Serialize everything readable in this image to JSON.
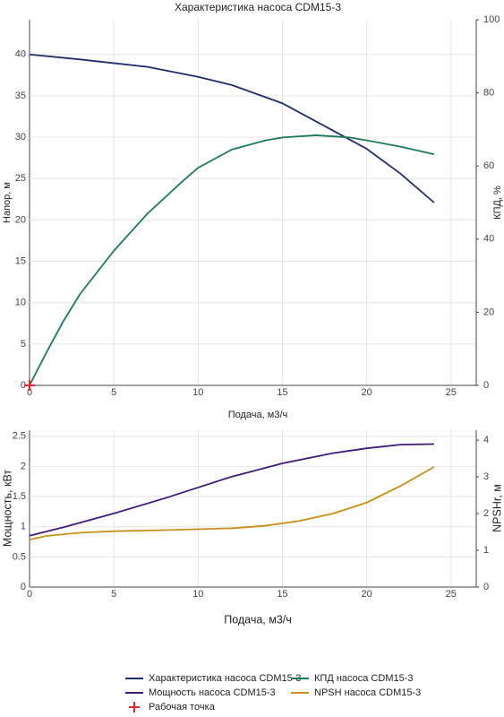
{
  "chart_data": [
    {
      "type": "line",
      "title": "Характеристика насоса CDM15-3",
      "x_label": "Подача, м3/ч",
      "y_label": "Напор, м",
      "y2_label": "КПД, %",
      "xlim": [
        0,
        26.5
      ],
      "xticks": [
        0,
        5,
        10,
        15,
        20,
        25
      ],
      "ylim": [
        0,
        44.2
      ],
      "yticks": [
        0,
        5,
        10,
        15,
        20,
        25,
        30,
        35,
        40
      ],
      "y2lim": [
        0,
        100
      ],
      "y2ticks": [
        0,
        20,
        40,
        60,
        80,
        100
      ],
      "grid": true,
      "series": [
        {
          "name": "Характеристика насоса CDM15-3",
          "color": "#1f2d6b",
          "x": [
            0,
            3,
            7,
            10,
            12,
            15,
            18,
            20,
            22,
            24
          ],
          "values": [
            40,
            39.4,
            38.5,
            37.3,
            36.3,
            34.1,
            30.8,
            28.6,
            25.6,
            22.1
          ]
        },
        {
          "name": "КПД насоса CDM15-3",
          "axis": "y2",
          "color": "#1b7a5c",
          "x": [
            0,
            1,
            2,
            3,
            5,
            7,
            9,
            10,
            12,
            14,
            15,
            17,
            19,
            20,
            22,
            24
          ],
          "values": [
            0,
            9,
            17.5,
            25,
            36.8,
            47,
            55.5,
            59.5,
            64.5,
            67,
            67.8,
            68.4,
            67.8,
            67,
            65.3,
            63.2
          ]
        },
        {
          "name": "Рабочая точка",
          "color": "#e8262a",
          "marker": "cross",
          "x": [
            0
          ],
          "values": [
            0
          ]
        }
      ]
    },
    {
      "type": "line",
      "x_label": "Подача, м3/ч",
      "y_label": "Мощность, кВт",
      "y2_label": "NPSHr, м",
      "xlim": [
        0,
        26.5
      ],
      "xticks": [
        0,
        5,
        10,
        15,
        20,
        25
      ],
      "ylim": [
        0,
        2.6
      ],
      "yticks": [
        0,
        0.5,
        1,
        1.5,
        2,
        2.5
      ],
      "y2lim": [
        0,
        4.27
      ],
      "y2ticks": [
        0,
        1,
        2,
        3,
        4
      ],
      "grid": true,
      "series": [
        {
          "name": "Мощность насоса CDM15-3",
          "color": "#3f1a7a",
          "x": [
            0,
            2,
            5,
            8,
            10,
            12,
            15,
            18,
            20,
            22,
            24
          ],
          "values": [
            0.85,
            0.99,
            1.22,
            1.47,
            1.65,
            1.83,
            2.05,
            2.22,
            2.3,
            2.36,
            2.37
          ]
        },
        {
          "name": "NPSH насоса CDM15-3",
          "axis": "y2",
          "color": "#c8901a",
          "x": [
            0,
            1,
            3,
            5,
            8,
            12,
            14,
            16,
            18,
            20,
            22,
            24
          ],
          "values": [
            1.29,
            1.39,
            1.48,
            1.52,
            1.55,
            1.6,
            1.67,
            1.8,
            2.0,
            2.3,
            2.75,
            3.27
          ]
        }
      ]
    }
  ]
}
